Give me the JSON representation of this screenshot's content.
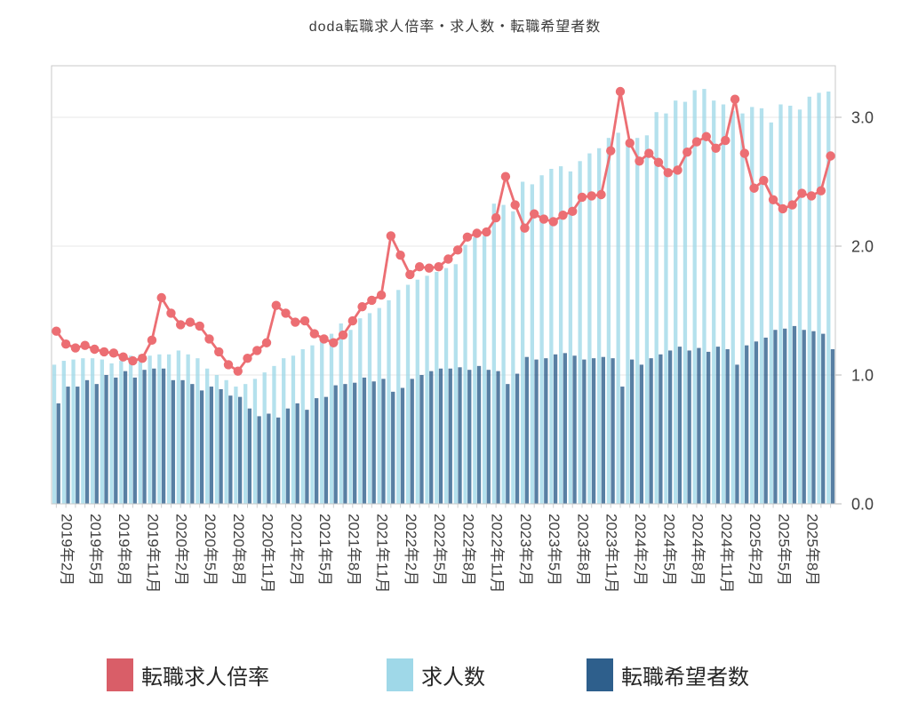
{
  "title": "doda転職求人倍率・求人数・転職希望者数",
  "legend": {
    "items": [
      {
        "label": "転職求人倍率",
        "color": "#d95e68"
      },
      {
        "label": "求人数",
        "color": "#9fd8e8"
      },
      {
        "label": "転職希望者数",
        "color": "#2e5f8c"
      }
    ]
  },
  "chart_data": {
    "type": "bar+line",
    "title": "doda転職求人倍率・求人数・転職希望者数",
    "legend_position": "bottom",
    "grid": true,
    "months": [
      "2019年1月",
      "2019年2月",
      "2019年3月",
      "2019年4月",
      "2019年5月",
      "2019年6月",
      "2019年7月",
      "2019年8月",
      "2019年9月",
      "2019年10月",
      "2019年11月",
      "2019年12月",
      "2020年1月",
      "2020年2月",
      "2020年3月",
      "2020年4月",
      "2020年5月",
      "2020年6月",
      "2020年7月",
      "2020年8月",
      "2020年9月",
      "2020年10月",
      "2020年11月",
      "2020年12月",
      "2021年1月",
      "2021年2月",
      "2021年3月",
      "2021年4月",
      "2021年5月",
      "2021年6月",
      "2021年7月",
      "2021年8月",
      "2021年9月",
      "2021年10月",
      "2021年11月",
      "2021年12月",
      "2022年1月",
      "2022年2月",
      "2022年3月",
      "2022年4月",
      "2022年5月",
      "2022年6月",
      "2022年7月",
      "2022年8月",
      "2022年9月",
      "2022年10月",
      "2022年11月",
      "2022年12月",
      "2023年1月",
      "2023年2月",
      "2023年3月",
      "2023年4月",
      "2023年5月",
      "2023年6月",
      "2023年7月",
      "2023年8月",
      "2023年9月",
      "2023年10月",
      "2023年11月",
      "2023年12月",
      "2024年1月",
      "2024年2月",
      "2024年3月",
      "2024年4月",
      "2024年5月",
      "2024年6月",
      "2024年7月",
      "2024年8月",
      "2024年9月",
      "2024年10月",
      "2024年11月",
      "2024年12月",
      "2025年1月",
      "2025年2月",
      "2025年3月",
      "2025年4月",
      "2025年5月",
      "2025年6月",
      "2025年7月",
      "2025年8月",
      "2025年9月",
      "2025年10月"
    ],
    "x_tick_labels": [
      "2019年2月",
      "2019年5月",
      "2019年8月",
      "2019年11月",
      "2020年2月",
      "2020年5月",
      "2020年8月",
      "2020年11月",
      "2021年2月",
      "2021年5月",
      "2021年8月",
      "2021年11月",
      "2022年2月",
      "2022年5月",
      "2022年8月",
      "2022年11月",
      "2023年2月",
      "2023年5月",
      "2023年8月",
      "2023年11月",
      "2024年2月",
      "2024年5月",
      "2024年8月",
      "2024年11月",
      "2025年2月",
      "2025年5月",
      "2025年8月"
    ],
    "y_axis": {
      "side": "right",
      "min": 0,
      "max": 3.4,
      "ticks": [
        0,
        1,
        2,
        3
      ],
      "tick_labels": [
        "0.0",
        "1.0",
        "2.0",
        "3.0"
      ]
    },
    "series": [
      {
        "name": "転職求人倍率",
        "type": "line",
        "color": "#ec6e73",
        "values": [
          1.34,
          1.24,
          1.21,
          1.23,
          1.2,
          1.18,
          1.17,
          1.14,
          1.11,
          1.13,
          1.27,
          1.6,
          1.48,
          1.39,
          1.41,
          1.38,
          1.28,
          1.18,
          1.08,
          1.03,
          1.13,
          1.19,
          1.25,
          1.54,
          1.48,
          1.41,
          1.42,
          1.32,
          1.28,
          1.25,
          1.31,
          1.42,
          1.53,
          1.58,
          1.62,
          2.08,
          1.93,
          1.78,
          1.84,
          1.83,
          1.84,
          1.9,
          1.97,
          2.07,
          2.1,
          2.11,
          2.22,
          2.54,
          2.32,
          2.14,
          2.25,
          2.21,
          2.19,
          2.24,
          2.27,
          2.38,
          2.39,
          2.4,
          2.74,
          3.2,
          2.8,
          2.66,
          2.72,
          2.65,
          2.57,
          2.59,
          2.73,
          2.81,
          2.85,
          2.76,
          2.82,
          3.14,
          2.72,
          2.45,
          2.51,
          2.36,
          2.29,
          2.32,
          2.41,
          2.39,
          2.43,
          2.7
        ]
      },
      {
        "name": "求人数",
        "type": "bar",
        "color": "#9fd8e8",
        "values": [
          1.08,
          1.11,
          1.12,
          1.13,
          1.13,
          1.12,
          1.09,
          1.11,
          1.15,
          1.16,
          1.15,
          1.16,
          1.16,
          1.19,
          1.16,
          1.13,
          1.05,
          1.0,
          0.96,
          0.91,
          0.93,
          0.97,
          1.02,
          1.07,
          1.13,
          1.15,
          1.2,
          1.23,
          1.3,
          1.32,
          1.4,
          1.35,
          1.44,
          1.48,
          1.52,
          1.58,
          1.66,
          1.7,
          1.74,
          1.77,
          1.8,
          1.83,
          1.86,
          2.01,
          2.07,
          2.08,
          2.33,
          2.32,
          2.27,
          2.5,
          2.48,
          2.55,
          2.6,
          2.62,
          2.58,
          2.66,
          2.72,
          2.76,
          2.84,
          2.88,
          2.81,
          2.84,
          2.86,
          3.04,
          3.03,
          3.13,
          3.12,
          3.21,
          3.22,
          3.13,
          3.1,
          3.05,
          3.03,
          3.08,
          3.07,
          2.96,
          3.1,
          3.09,
          3.06,
          3.16,
          3.19,
          3.2
        ]
      },
      {
        "name": "転職希望者数",
        "type": "bar",
        "color": "#2e5f8c",
        "values": [
          0.78,
          0.91,
          0.91,
          0.96,
          0.93,
          1.0,
          0.98,
          1.03,
          0.98,
          1.04,
          1.05,
          1.05,
          0.96,
          0.96,
          0.93,
          0.88,
          0.91,
          0.89,
          0.84,
          0.83,
          0.74,
          0.68,
          0.7,
          0.67,
          0.74,
          0.78,
          0.73,
          0.82,
          0.83,
          0.92,
          0.93,
          0.94,
          0.98,
          0.95,
          0.97,
          0.87,
          0.9,
          0.97,
          1.0,
          1.03,
          1.05,
          1.05,
          1.06,
          1.04,
          1.07,
          1.04,
          1.03,
          0.93,
          1.01,
          1.14,
          1.12,
          1.13,
          1.16,
          1.17,
          1.15,
          1.12,
          1.13,
          1.14,
          1.13,
          0.91,
          1.12,
          1.08,
          1.13,
          1.16,
          1.19,
          1.22,
          1.19,
          1.21,
          1.18,
          1.22,
          1.2,
          1.08,
          1.23,
          1.26,
          1.29,
          1.35,
          1.36,
          1.38,
          1.35,
          1.34,
          1.32,
          1.2
        ]
      }
    ]
  }
}
